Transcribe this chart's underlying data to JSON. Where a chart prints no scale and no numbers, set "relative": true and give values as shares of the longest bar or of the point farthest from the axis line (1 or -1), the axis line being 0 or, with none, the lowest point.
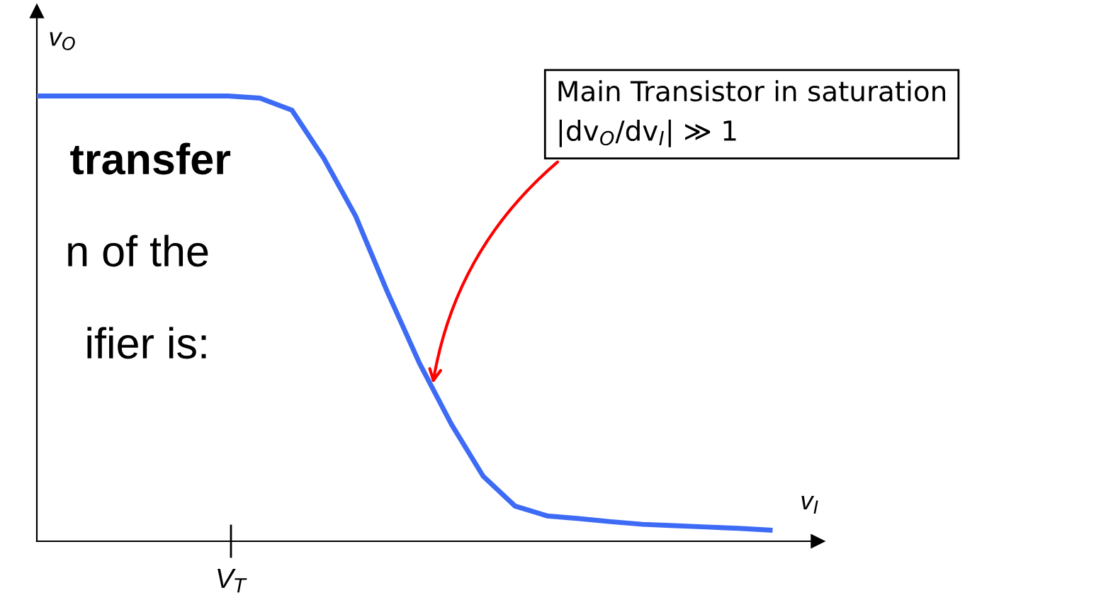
{
  "chart_data": {
    "type": "line",
    "relative": true,
    "xlabel": "v$_{I}$",
    "ylabel": "v$_{O}$",
    "categories": [
      null,
      null,
      null,
      null,
      null,
      null,
      null,
      null,
      null,
      null,
      null,
      null,
      null,
      null,
      null,
      null,
      null,
      null,
      null,
      null,
      null,
      null,
      null,
      null
    ],
    "series": [
      {
        "color": "#3d6bf5",
        "values": [
          1.0,
          1.0,
          1.0,
          1.0,
          1.0,
          1.0,
          1.0,
          0.995,
          0.968,
          0.86,
          0.73,
          0.559,
          0.4,
          0.263,
          0.146,
          0.079,
          0.057,
          0.051,
          0.044,
          0.038,
          0.035,
          0.032,
          0.029,
          0.025
        ]
      }
    ],
    "annotations": [
      "transfer",
      "n of the",
      "ifier is:",
      "V$_{T}$",
      "Main Transistor in saturation\n|dv$_{O}$/dv$_{I}$| ≫ 1"
    ]
  }
}
